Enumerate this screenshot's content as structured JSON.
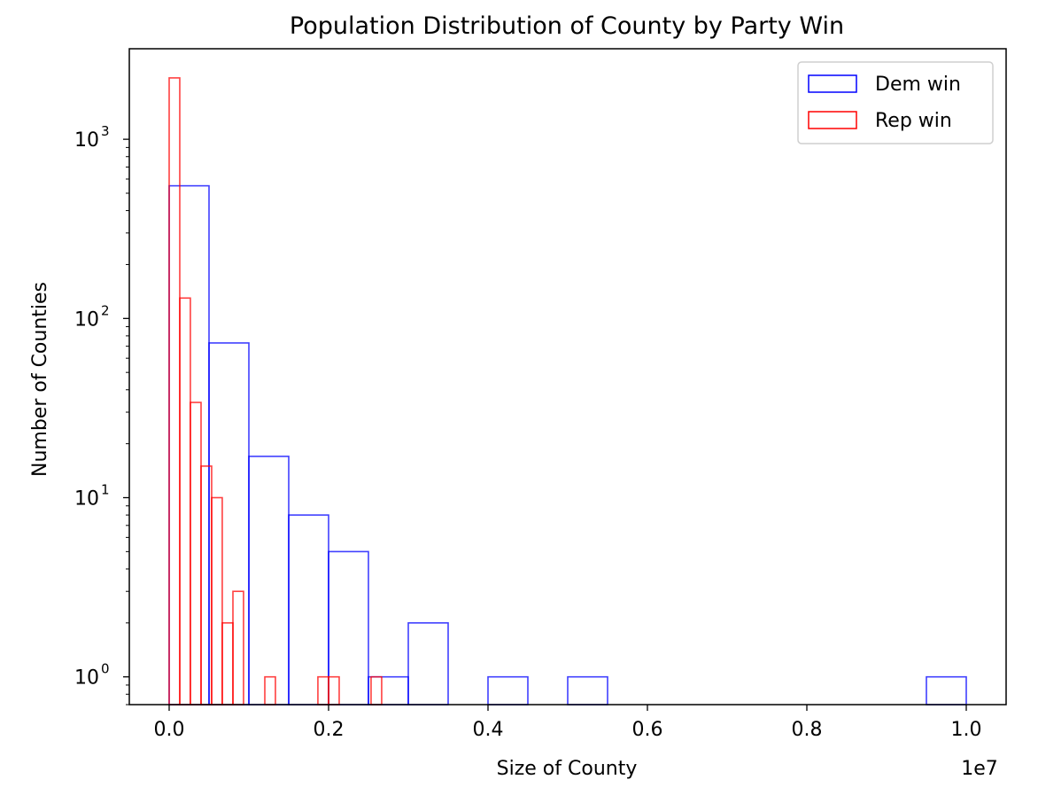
{
  "chart_data": {
    "type": "histogram",
    "title": "Population Distribution of County by Party Win",
    "xlabel": "Size of County",
    "ylabel": "Number of Counties",
    "x_offset_text": "1e7",
    "xlim": [
      -0.05,
      1.05
    ],
    "ylim": [
      0.7,
      3200
    ],
    "yscale": "log",
    "x_ticks": [
      0.0,
      0.2,
      0.4,
      0.6,
      0.8,
      1.0
    ],
    "x_tick_labels": [
      "0.0",
      "0.2",
      "0.4",
      "0.6",
      "0.8",
      "1.0"
    ],
    "y_ticks": [
      1,
      10,
      100,
      1000
    ],
    "y_tick_labels": [
      "10",
      "10",
      "10",
      "10"
    ],
    "y_tick_exponents": [
      "0",
      "1",
      "2",
      "3"
    ],
    "grid": false,
    "legend_position": "top-right",
    "series": [
      {
        "name": "Dem win",
        "color": "#0000ff",
        "bin_edges": [
          0.0,
          0.05,
          0.1,
          0.15,
          0.2,
          0.25,
          0.3,
          0.35,
          0.4,
          0.45,
          0.5,
          0.55,
          0.6,
          0.65,
          0.7,
          0.75,
          0.8,
          0.85,
          0.9,
          0.95,
          1.0
        ],
        "counts": [
          550,
          73,
          17,
          8,
          5,
          1,
          2,
          0,
          1,
          0,
          1,
          0,
          0,
          0,
          0,
          0,
          0,
          0,
          0,
          1
        ]
      },
      {
        "name": "Rep win",
        "color": "#ff0000",
        "bin_edges": [
          0.0,
          0.0133,
          0.0266,
          0.04,
          0.0533,
          0.0666,
          0.08,
          0.0933,
          0.1066,
          0.12,
          0.1333,
          0.1466,
          0.16,
          0.1733,
          0.1866,
          0.2,
          0.2133,
          0.2266,
          0.24,
          0.2533,
          0.2666
        ],
        "counts": [
          2200,
          130,
          34,
          15,
          10,
          2,
          3,
          0,
          0,
          1,
          0,
          0,
          0,
          0,
          1,
          1,
          0,
          0,
          0,
          1
        ]
      }
    ]
  }
}
